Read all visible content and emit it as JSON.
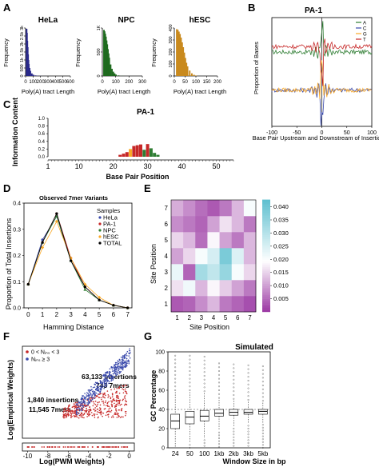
{
  "figure": {
    "panel_labels": [
      "A",
      "B",
      "C",
      "D",
      "E",
      "F",
      "G"
    ]
  },
  "chart_data": [
    {
      "id": "A",
      "type": "bar",
      "xlabel": "Poly(A) tract Length",
      "ylabel": "Frequency",
      "panels": [
        {
          "title": "HeLa",
          "color": "#2b2b8c",
          "x_ticks": [
            "0",
            "100",
            "200",
            "300",
            "400",
            "500",
            "600"
          ],
          "xlim": [
            0,
            600
          ],
          "y_ticks": [
            "0",
            "500",
            "1k",
            "1.5k",
            "2k",
            "2.5k",
            "3k"
          ],
          "ylim": [
            0,
            3000
          ],
          "hist": {
            "x": [
              10,
              15,
              20,
              25,
              30,
              35,
              40,
              50,
              60,
              80,
              100,
              130,
              160,
              200,
              250
            ],
            "y": [
              2950,
              2700,
              2200,
              1800,
              1350,
              1000,
              750,
              500,
              320,
              160,
              80,
              35,
              15,
              6,
              2
            ]
          }
        },
        {
          "title": "NPC",
          "color": "#1f6b1f",
          "x_ticks": [
            "0",
            "100",
            "200",
            "300"
          ],
          "xlim": [
            0,
            300
          ],
          "y_ticks": [
            "0",
            "500",
            "1K"
          ],
          "ylim": [
            0,
            1000
          ],
          "hist": {
            "x": [
              10,
              15,
              20,
              25,
              30,
              35,
              40,
              45,
              50,
              60,
              70,
              80,
              90,
              100,
              120,
              150
            ],
            "y": [
              960,
              930,
              880,
              820,
              740,
              660,
              560,
              470,
              380,
              240,
              150,
              90,
              55,
              30,
              12,
              3
            ]
          }
        },
        {
          "title": "hESC",
          "color": "#c98a1e",
          "x_ticks": [
            "0",
            "50",
            "100",
            "150",
            "200"
          ],
          "xlim": [
            0,
            200
          ],
          "y_ticks": [
            "0",
            "100",
            "200",
            "300",
            "400"
          ],
          "ylim": [
            0,
            400
          ],
          "hist": {
            "x": [
              10,
              15,
              20,
              25,
              30,
              35,
              40,
              45,
              50,
              55,
              60,
              70,
              80,
              90,
              100
            ],
            "y": [
              390,
              385,
              370,
              350,
              320,
              280,
              240,
              195,
              150,
              110,
              80,
              45,
              22,
              10,
              4
            ]
          }
        }
      ]
    },
    {
      "id": "B",
      "type": "line",
      "title": "PA-1",
      "xlabel": "Base Pair Upstream and Downstream of Insertions",
      "ylabel": "Proportion of Bases",
      "x_ticks": [
        "-100",
        "-50",
        "0",
        "50",
        "100"
      ],
      "xlim": [
        -100,
        100
      ],
      "ylim": [
        0.1,
        0.4
      ],
      "vline": 0,
      "legend": {
        "entries": [
          "A",
          "C",
          "G",
          "T"
        ],
        "placement": "top-right"
      },
      "series": [
        {
          "name": "A",
          "color": "#2e7d32",
          "baseline": 0.305
        },
        {
          "name": "C",
          "color": "#3949ab",
          "baseline": 0.2
        },
        {
          "name": "G",
          "color": "#f9a825",
          "baseline": 0.2
        },
        {
          "name": "T",
          "color": "#c62828",
          "baseline": 0.32
        }
      ]
    },
    {
      "id": "C",
      "type": "bar",
      "title": "PA-1",
      "xlabel": "Base Pair Position",
      "ylabel": "Information Content",
      "x_ticks": [
        "1",
        "10",
        "20",
        "30",
        "40",
        "50"
      ],
      "xlim": [
        1,
        55
      ],
      "y_ticks": [
        "0.0",
        "0.2",
        "0.4",
        "0.6",
        "0.8",
        "1.0"
      ],
      "ylim": [
        0,
        1
      ],
      "positions": [
        22,
        23,
        24,
        25,
        26,
        27,
        28,
        29,
        30,
        31,
        32,
        33
      ],
      "values": [
        0.05,
        0.08,
        0.12,
        0.2,
        0.28,
        0.3,
        0.32,
        0.18,
        0.33,
        0.22,
        0.1,
        0.05
      ],
      "colors": [
        "#c62828",
        "#c62828",
        "#c62828",
        "#f9a825",
        "#c62828",
        "#c62828",
        "#c62828",
        "#2e7d32",
        "#c62828",
        "#2e7d32",
        "#2e7d32",
        "#2e7d32"
      ]
    },
    {
      "id": "D",
      "type": "line",
      "title": "Observed 7mer Variants",
      "xlabel": "Hamming Distance",
      "ylabel": "Proportion of Total Insertions",
      "categories": [
        "0",
        "1",
        "2",
        "3",
        "4",
        "5",
        "6",
        "7"
      ],
      "y_ticks": [
        "0.0",
        "0.1",
        "0.2",
        "0.3",
        "0.4"
      ],
      "ylim": [
        0,
        0.4
      ],
      "legend": {
        "title": "Samples",
        "placement": "top-right"
      },
      "series": [
        {
          "name": "HeLa",
          "color": "#3949ab",
          "marker": "circle",
          "values": [
            0.09,
            0.26,
            0.35,
            0.18,
            0.08,
            0.03,
            0.01,
            0.0
          ]
        },
        {
          "name": "PA-1",
          "color": "#c62828",
          "marker": "circle",
          "values": [
            0.09,
            0.25,
            0.36,
            0.19,
            0.08,
            0.03,
            0.01,
            0.0
          ]
        },
        {
          "name": "NPC",
          "color": "#2e7d32",
          "marker": "triangle",
          "values": [
            0.09,
            0.25,
            0.35,
            0.18,
            0.07,
            0.03,
            0.01,
            0.0
          ]
        },
        {
          "name": "hESC",
          "color": "#f9a825",
          "marker": "diamond",
          "values": [
            0.09,
            0.23,
            0.33,
            0.19,
            0.09,
            0.04,
            0.01,
            0.0
          ]
        },
        {
          "name": "TOTAL",
          "color": "#000000",
          "marker": "circle",
          "values": [
            0.09,
            0.25,
            0.36,
            0.18,
            0.08,
            0.03,
            0.01,
            0.0
          ]
        }
      ]
    },
    {
      "id": "E",
      "type": "heatmap",
      "xlabel": "Site Position",
      "ylabel": "Site Position",
      "x_ticks": [
        "1",
        "2",
        "3",
        "4",
        "5",
        "6",
        "7"
      ],
      "y_ticks": [
        "1",
        "2",
        "3",
        "4",
        "5",
        "6",
        "7"
      ],
      "colorbar": {
        "ticks": [
          "0.005",
          "0.010",
          "0.015",
          "0.020",
          "0.025",
          "0.030",
          "0.035",
          "0.040"
        ],
        "range": [
          0,
          0.042
        ],
        "low_color": "#9c3aa4",
        "mid_color": "#ffffff",
        "high_color": "#5fc0d0"
      },
      "matrix": [
        [
          0.003,
          0.004,
          0.008,
          0.012,
          0.006,
          0.004,
          0.002
        ],
        [
          0.016,
          0.021,
          0.012,
          0.018,
          0.014,
          0.01,
          0.006
        ],
        [
          0.022,
          0.004,
          0.032,
          0.028,
          0.034,
          0.02,
          0.015
        ],
        [
          0.01,
          0.015,
          0.02,
          0.025,
          0.038,
          0.024,
          0.012
        ],
        [
          0.015,
          0.012,
          0.005,
          0.018,
          0.01,
          0.006,
          0.012
        ],
        [
          0.008,
          0.006,
          0.004,
          0.01,
          0.016,
          0.012,
          0.006
        ],
        [
          0.011,
          0.008,
          0.005,
          0.003,
          0.006,
          0.012,
          0.02
        ]
      ]
    },
    {
      "id": "F",
      "type": "scatter",
      "xlabel": "Log(PWM Weights)",
      "ylabel": "Log(Empirical Weights)",
      "x_ticks": [
        "-10",
        "-8",
        "-6",
        "-4",
        "-2",
        "0"
      ],
      "xlim": [
        -10.5,
        0.5
      ],
      "ylim": [
        0,
        1
      ],
      "legend": {
        "entries": [
          "0 < Nᵢₙₛ < 3",
          "Nᵢₙₛ ≥ 3"
        ],
        "placement": "top-left"
      },
      "annotations": [
        {
          "text": "63,133 insertions",
          "color": "#3949ab"
        },
        {
          "text": "743  7mers",
          "color": "#3949ab"
        },
        {
          "text": "1,840 insertions",
          "color": "#c62828"
        },
        {
          "text": "11,545  7mers",
          "color": "#c62828"
        }
      ],
      "series": [
        {
          "name": "0 < Nins < 3",
          "color": "#c62828"
        },
        {
          "name": "Nins ≥ 3",
          "color": "#3949ab"
        }
      ]
    },
    {
      "id": "G",
      "type": "box",
      "title": "Simulated",
      "xlabel": "Window Size in bp",
      "ylabel": "GC Percentage",
      "categories": [
        "24",
        "50",
        "100",
        "1kb",
        "2kb",
        "3kb",
        "5kb"
      ],
      "y_ticks": [
        "0",
        "20",
        "40",
        "60",
        "80",
        "100"
      ],
      "ylim": [
        0,
        100
      ],
      "hline": 40,
      "boxes": [
        {
          "min": 0,
          "q1": 20,
          "median": 28,
          "q3": 35,
          "max": 58
        },
        {
          "min": 5,
          "q1": 25,
          "median": 32,
          "q3": 38,
          "max": 58
        },
        {
          "min": 10,
          "q1": 28,
          "median": 33,
          "q3": 39,
          "max": 57
        },
        {
          "min": 18,
          "q1": 33,
          "median": 36,
          "q3": 40,
          "max": 50
        },
        {
          "min": 22,
          "q1": 34,
          "median": 37,
          "q3": 40,
          "max": 49
        },
        {
          "min": 25,
          "q1": 35,
          "median": 37,
          "q3": 40,
          "max": 48
        },
        {
          "min": 26,
          "q1": 35,
          "median": 38,
          "q3": 40,
          "max": 47
        }
      ]
    }
  ]
}
